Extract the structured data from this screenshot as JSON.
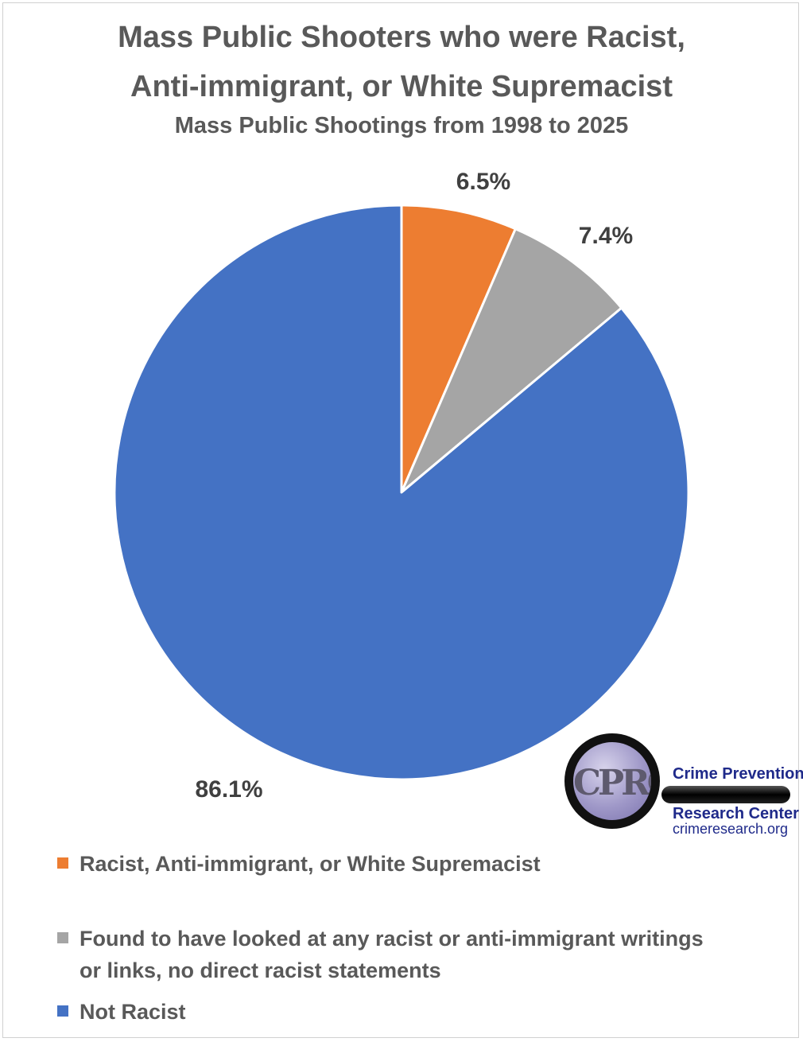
{
  "chart_data": {
    "type": "pie",
    "title": "Mass Public Shooters who were Racist, Anti-immigrant, or White Supremacist",
    "title_lines": [
      "Mass Public Shooters who were Racist,",
      "Anti-immigrant, or White Supremacist"
    ],
    "subtitle": "Mass Public Shootings from 1998 to 2025",
    "legend_position": "bottom",
    "slices": [
      {
        "name": "Racist, Anti-immigrant, or White Supremacist",
        "value": 6.5,
        "label": "6.5%",
        "color": "#ED7D31"
      },
      {
        "name": "Found to have looked at any racist or anti-immigrant writings or links, no direct racist statements",
        "name_lines": [
          "Found to have looked at any racist or anti-immigrant writings",
          "or links, no direct racist statements"
        ],
        "value": 7.4,
        "label": "7.4%",
        "color": "#A5A5A5"
      },
      {
        "name": "Not Racist",
        "value": 86.1,
        "label": "86.1%",
        "color": "#4472C4"
      }
    ]
  },
  "logo": {
    "ring_text": "CPRC",
    "name_line1": "Crime Prevention",
    "name_line2": "Research Center",
    "url": "crimeresearch.org"
  }
}
